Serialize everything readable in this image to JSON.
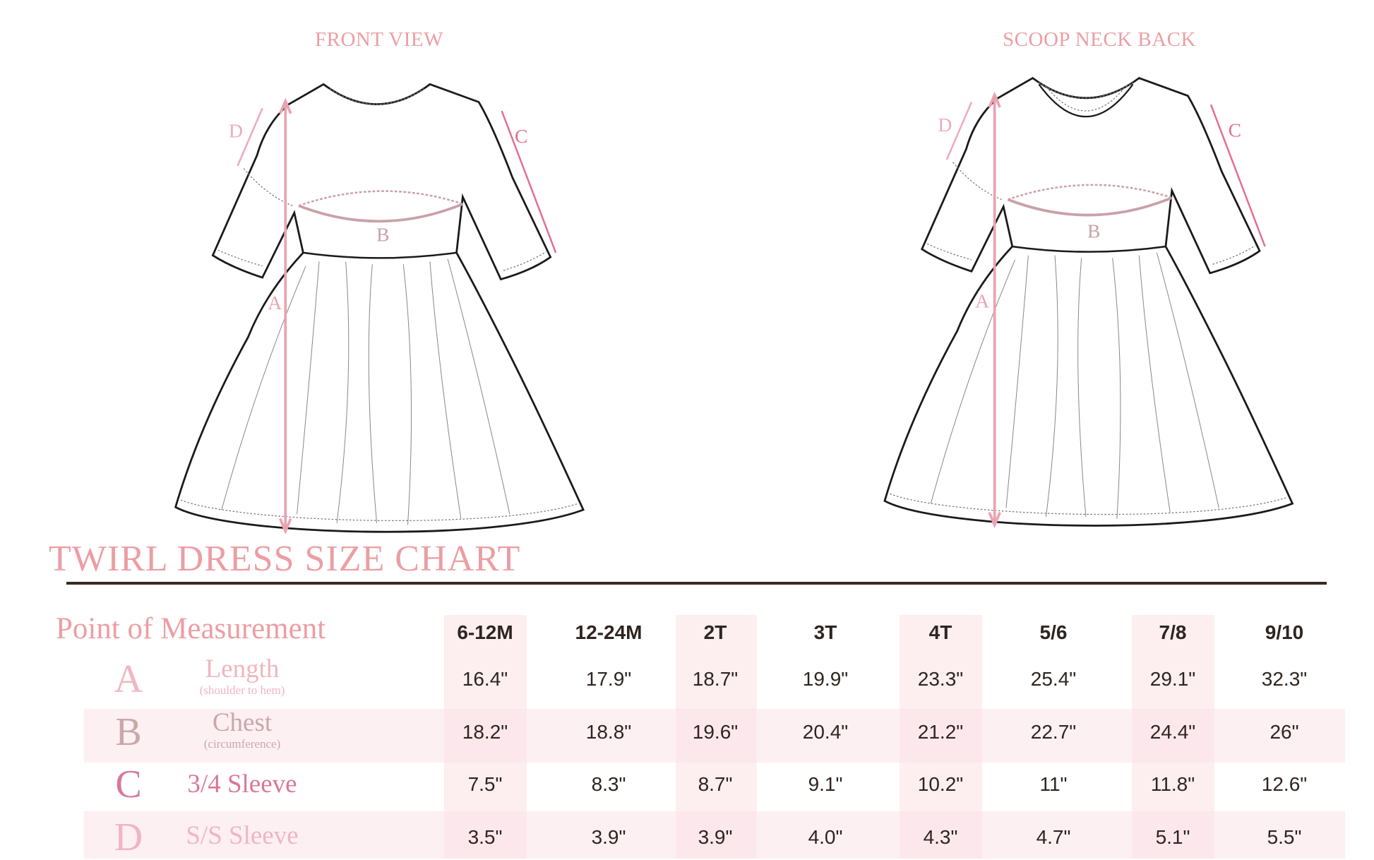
{
  "views": {
    "front_title": "FRONT VIEW",
    "back_title": "SCOOP NECK BACK"
  },
  "diagram_labels": {
    "a": "A",
    "b": "B",
    "c": "C",
    "d": "D"
  },
  "title": "TWIRL DRESS SIZE CHART",
  "table": {
    "header_label": "Point of Measurement",
    "sizes": [
      "6-12M",
      "12-24M",
      "2T",
      "3T",
      "4T",
      "5/6",
      "7/8",
      "9/10"
    ],
    "rows": [
      {
        "letter": "A",
        "label": "Length",
        "sublabel": "(shoulder to hem)",
        "values": [
          "16.4\"",
          "17.9\"",
          "18.7\"",
          "19.9\"",
          "23.3\"",
          "25.4\"",
          "29.1\"",
          "32.3\""
        ]
      },
      {
        "letter": "B",
        "label": "Chest",
        "sublabel": "(circumference)",
        "values": [
          "18.2\"",
          "18.8\"",
          "19.6\"",
          "20.4\"",
          "21.2\"",
          "22.7\"",
          "24.4\"",
          "26\""
        ]
      },
      {
        "letter": "C",
        "label": "3/4 Sleeve",
        "values": [
          "7.5\"",
          "8.3\"",
          "8.7\"",
          "9.1\"",
          "10.2\"",
          "11\"",
          "11.8\"",
          "12.6\""
        ]
      },
      {
        "letter": "D",
        "label": "S/S Sleeve",
        "values": [
          "3.5\"",
          "3.9\"",
          "3.9\"",
          "4.0\"",
          "4.3\"",
          "4.7\"",
          "5.1\"",
          "5.5\""
        ]
      }
    ]
  },
  "colors": {
    "title_pink": "#ec9ea3",
    "rule_brown": "#3b2a22",
    "shade": "#fdeef0",
    "a": "#f0b6bf",
    "b": "#c9a7ab",
    "c": "#d9779a",
    "d": "#f0b5c6"
  }
}
